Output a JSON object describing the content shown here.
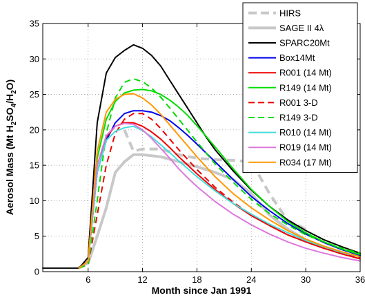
{
  "chart_data": {
    "type": "line",
    "title": "",
    "xlabel": "Month since Jan 1991",
    "ylabel_parts": [
      "Aerosol Mass (Mt H",
      "2",
      "SO",
      "4",
      "/H",
      "2",
      "O)"
    ],
    "xlim": [
      1,
      36
    ],
    "ylim": [
      0,
      35
    ],
    "xticks": [
      6,
      12,
      18,
      24,
      30,
      36
    ],
    "yticks": [
      0,
      5,
      10,
      15,
      20,
      25,
      30,
      35
    ],
    "grid": "dotted",
    "legend_position": "top-right",
    "series": [
      {
        "name": "HIRS",
        "color": "#c8c8c8",
        "dash": "dashed",
        "width": 4,
        "x": [
          10,
          11,
          12,
          14,
          16,
          18,
          20,
          22,
          24,
          26,
          28,
          30
        ],
        "y": [
          20.0,
          17.0,
          17.3,
          17.3,
          16.5,
          16.0,
          15.8,
          15.7,
          15.5,
          11.0,
          7.2,
          6.0
        ]
      },
      {
        "name": "SAGE II 4λ",
        "color": "#c8c8c8",
        "dash": "solid",
        "width": 4,
        "x": [
          5,
          6,
          7,
          8,
          9,
          10,
          11,
          12,
          14,
          16,
          18,
          20,
          22,
          24,
          26,
          28,
          30
        ],
        "y": [
          0.6,
          1.2,
          5.0,
          9.0,
          14.0,
          15.5,
          16.5,
          16.5,
          16.2,
          15.5,
          14.8,
          14.0,
          13.0,
          11.0,
          8.0,
          6.0,
          4.5
        ]
      },
      {
        "name": "SPARC20Mt",
        "color": "#000000",
        "dash": "solid",
        "width": 2,
        "x": [
          1,
          2,
          3,
          4,
          5,
          6,
          7,
          8,
          9,
          10,
          11,
          12,
          13,
          14,
          15,
          16,
          17,
          18,
          19,
          20,
          22,
          24,
          26,
          28,
          30,
          32,
          34,
          36
        ],
        "y": [
          0.5,
          0.5,
          0.5,
          0.5,
          0.5,
          2.0,
          21.0,
          28.0,
          30.2,
          31.2,
          32.0,
          31.5,
          30.5,
          29.0,
          27.0,
          25.0,
          23.0,
          21.0,
          19.0,
          17.2,
          14.2,
          11.5,
          9.2,
          7.3,
          5.8,
          4.5,
          3.5,
          2.6
        ]
      },
      {
        "name": "Box14Mt",
        "color": "#0000ee",
        "dash": "solid",
        "width": 2,
        "x": [
          5,
          6,
          7,
          8,
          9,
          10,
          11,
          12,
          13,
          14,
          15,
          16,
          17,
          18,
          20,
          22,
          24,
          26,
          28,
          30,
          32,
          34,
          36
        ],
        "y": [
          0.5,
          1.5,
          14.0,
          18.5,
          21.0,
          22.3,
          22.7,
          22.7,
          22.5,
          22.0,
          21.3,
          20.3,
          19.2,
          18.0,
          15.5,
          13.0,
          10.6,
          8.6,
          6.8,
          5.3,
          4.1,
          3.1,
          2.3
        ]
      },
      {
        "name": "R001 (14 Mt)",
        "color": "#ee0000",
        "dash": "solid",
        "width": 2,
        "x": [
          5,
          6,
          7,
          8,
          9,
          10,
          11,
          12,
          13,
          14,
          15,
          16,
          17,
          18,
          20,
          22,
          24,
          26,
          28,
          30,
          32,
          34,
          36
        ],
        "y": [
          0.5,
          1.5,
          15.0,
          19.0,
          20.5,
          21.0,
          21.0,
          20.5,
          19.7,
          18.7,
          17.5,
          16.2,
          15.0,
          13.8,
          11.6,
          9.6,
          7.9,
          6.5,
          5.2,
          4.2,
          3.3,
          2.5,
          1.8
        ]
      },
      {
        "name": "R149 (14 Mt)",
        "color": "#00dd00",
        "dash": "solid",
        "width": 2,
        "x": [
          5,
          6,
          7,
          8,
          9,
          10,
          11,
          12,
          13,
          14,
          15,
          16,
          17,
          18,
          20,
          22,
          24,
          26,
          28,
          30,
          32,
          34,
          36
        ],
        "y": [
          0.5,
          1.5,
          16.0,
          21.5,
          24.0,
          25.2,
          25.6,
          25.7,
          25.5,
          25.0,
          24.2,
          23.2,
          22.0,
          20.6,
          17.6,
          14.5,
          11.6,
          9.2,
          7.1,
          5.5,
          4.2,
          3.2,
          2.4
        ]
      },
      {
        "name": "R001 3-D",
        "color": "#ee0000",
        "dash": "dashed",
        "width": 2,
        "x": [
          5,
          6,
          7,
          8,
          9,
          10,
          11,
          12,
          13,
          14,
          15,
          16,
          17,
          18,
          20,
          22,
          24,
          26,
          28,
          30,
          32,
          34,
          36
        ],
        "y": [
          0.5,
          1.0,
          8.0,
          15.0,
          19.5,
          21.5,
          22.3,
          22.3,
          21.5,
          20.2,
          18.7,
          17.2,
          15.8,
          14.4,
          11.9,
          9.8,
          8.0,
          6.5,
          5.2,
          4.2,
          3.3,
          2.6,
          2.0
        ]
      },
      {
        "name": "R149 3-D",
        "color": "#00dd00",
        "dash": "dashed",
        "width": 2,
        "x": [
          5,
          6,
          7,
          8,
          9,
          10,
          11,
          12,
          13,
          14,
          15,
          16,
          17,
          18,
          20,
          22,
          24,
          26,
          28,
          30,
          32,
          34,
          36
        ],
        "y": [
          0.5,
          1.0,
          10.0,
          19.5,
          24.5,
          26.7,
          27.2,
          26.8,
          25.9,
          24.6,
          23.1,
          21.5,
          19.9,
          18.3,
          15.2,
          12.6,
          10.2,
          8.2,
          6.6,
          5.2,
          4.2,
          3.3,
          2.6
        ]
      },
      {
        "name": "R010 (14 Mt)",
        "color": "#44dddd",
        "dash": "solid",
        "width": 2,
        "x": [
          5,
          6,
          7,
          8,
          9,
          10,
          11,
          12,
          13,
          14,
          15,
          16,
          17,
          18,
          20,
          22,
          24,
          26,
          28,
          30,
          32,
          34,
          36
        ],
        "y": [
          0.5,
          1.5,
          14.0,
          18.5,
          19.8,
          20.3,
          20.5,
          19.9,
          19.0,
          17.9,
          16.8,
          15.6,
          14.5,
          13.4,
          11.4,
          9.6,
          8.1,
          6.7,
          5.5,
          4.4,
          3.5,
          2.7,
          2.1
        ]
      },
      {
        "name": "R019 (14 Mt)",
        "color": "#dd77dd",
        "dash": "solid",
        "width": 2,
        "x": [
          5,
          6,
          7,
          8,
          9,
          10,
          11,
          12,
          13,
          14,
          15,
          16,
          17,
          18,
          20,
          22,
          24,
          26,
          28,
          30,
          32,
          34,
          36
        ],
        "y": [
          0.5,
          1.5,
          15.0,
          19.2,
          20.5,
          20.9,
          20.8,
          20.0,
          18.8,
          17.4,
          16.0,
          14.5,
          13.2,
          12.0,
          9.9,
          8.1,
          6.6,
          5.3,
          4.2,
          3.3,
          2.6,
          2.0,
          1.5
        ]
      },
      {
        "name": "R034 (17 Mt)",
        "color": "#ff9900",
        "dash": "solid",
        "width": 2,
        "x": [
          5,
          6,
          7,
          8,
          9,
          10,
          11,
          12,
          13,
          14,
          15,
          16,
          17,
          18,
          20,
          22,
          24,
          26,
          28,
          30,
          32,
          34,
          36
        ],
        "y": [
          0.5,
          1.5,
          17.0,
          22.5,
          24.3,
          25.0,
          25.1,
          24.5,
          23.5,
          22.2,
          20.7,
          19.2,
          17.7,
          16.2,
          13.4,
          11.0,
          9.0,
          7.3,
          5.8,
          4.6,
          3.6,
          2.8,
          2.1
        ]
      }
    ]
  }
}
